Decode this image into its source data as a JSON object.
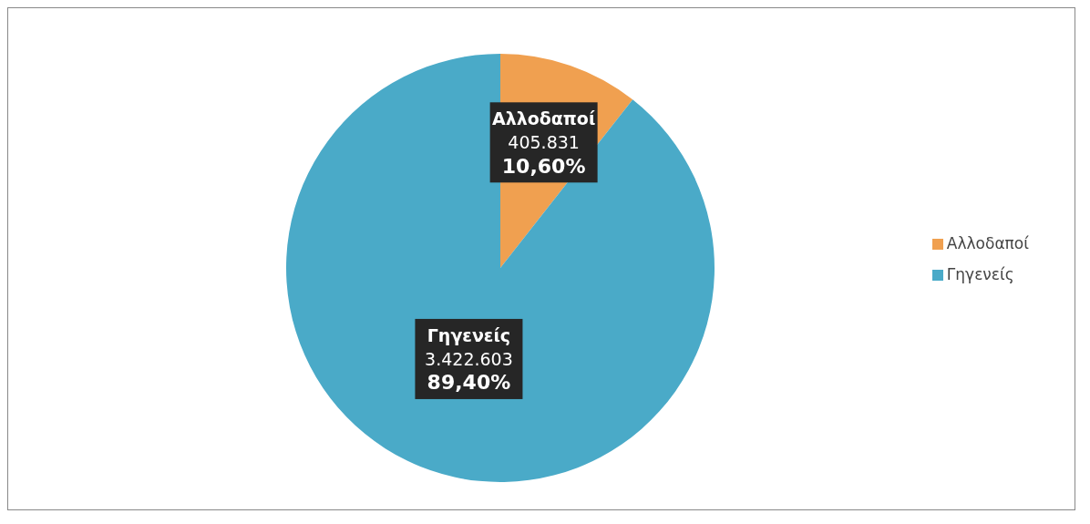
{
  "chart_data": {
    "type": "pie",
    "categories": [
      "Αλλοδαποί",
      "Γηγενείς"
    ],
    "values": [
      405831,
      3422603
    ],
    "colors": [
      "#f0a050",
      "#4aaac8"
    ],
    "value_labels": [
      "405.831\n10,60%",
      "3.422.603\n89,40%"
    ],
    "legend": "right"
  }
}
